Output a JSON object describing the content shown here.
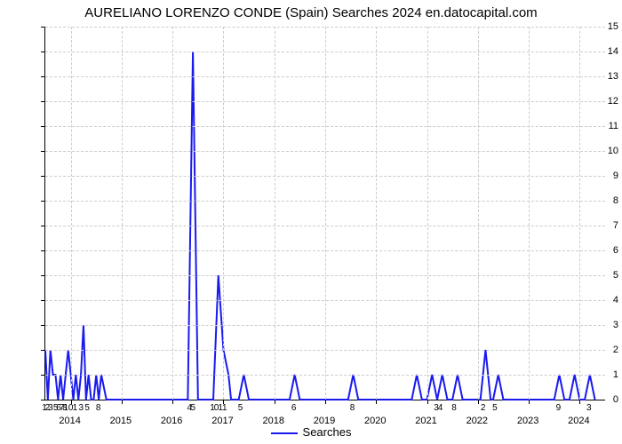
{
  "chart": {
    "type": "line",
    "title": "AURELIANO LORENZO CONDE (Spain) Searches 2024 en.datocapital.com",
    "title_fontsize": 15,
    "background_color": "#ffffff",
    "grid_color": "#cccccc",
    "line_color": "#1a1aef",
    "line_width": 2,
    "ylim": [
      0,
      15
    ],
    "ytick_step": 1,
    "xlim_years": [
      2013.5,
      2024.5
    ],
    "year_ticks": [
      2014,
      2015,
      2016,
      2017,
      2018,
      2019,
      2020,
      2021,
      2022,
      2023,
      2024
    ],
    "x_num_labels": [
      {
        "t": 2013.5,
        "text": "1"
      },
      {
        "t": 2013.56,
        "text": "2"
      },
      {
        "t": 2013.62,
        "text": "3"
      },
      {
        "t": 2013.72,
        "text": "5"
      },
      {
        "t": 2013.78,
        "text": "6"
      },
      {
        "t": 2013.84,
        "text": "7"
      },
      {
        "t": 2013.9,
        "text": "8"
      },
      {
        "t": 2013.97,
        "text": "10"
      },
      {
        "t": 2014.1,
        "text": "1"
      },
      {
        "t": 2014.22,
        "text": "3"
      },
      {
        "t": 2014.34,
        "text": "5"
      },
      {
        "t": 2014.56,
        "text": "8"
      },
      {
        "t": 2016.35,
        "text": "4"
      },
      {
        "t": 2016.42,
        "text": "5"
      },
      {
        "t": 2016.8,
        "text": "1"
      },
      {
        "t": 2016.88,
        "text": "0"
      },
      {
        "t": 2016.96,
        "text": "1"
      },
      {
        "t": 2017.04,
        "text": "1"
      },
      {
        "t": 2017.35,
        "text": "5"
      },
      {
        "t": 2018.4,
        "text": "6"
      },
      {
        "t": 2019.55,
        "text": "8"
      },
      {
        "t": 2021.2,
        "text": "3"
      },
      {
        "t": 2021.28,
        "text": "4"
      },
      {
        "t": 2021.55,
        "text": "8"
      },
      {
        "t": 2022.12,
        "text": "2"
      },
      {
        "t": 2022.35,
        "text": "5"
      },
      {
        "t": 2023.6,
        "text": "9"
      },
      {
        "t": 2024.2,
        "text": "3"
      }
    ],
    "data": [
      {
        "t": 2013.5,
        "v": 2
      },
      {
        "t": 2013.55,
        "v": 0
      },
      {
        "t": 2013.6,
        "v": 2
      },
      {
        "t": 2013.65,
        "v": 1
      },
      {
        "t": 2013.7,
        "v": 1
      },
      {
        "t": 2013.75,
        "v": 0
      },
      {
        "t": 2013.8,
        "v": 1
      },
      {
        "t": 2013.85,
        "v": 0
      },
      {
        "t": 2013.9,
        "v": 1
      },
      {
        "t": 2013.95,
        "v": 2
      },
      {
        "t": 2014.0,
        "v": 1
      },
      {
        "t": 2014.05,
        "v": 0
      },
      {
        "t": 2014.1,
        "v": 1
      },
      {
        "t": 2014.15,
        "v": 0
      },
      {
        "t": 2014.2,
        "v": 1
      },
      {
        "t": 2014.25,
        "v": 3
      },
      {
        "t": 2014.3,
        "v": 0
      },
      {
        "t": 2014.35,
        "v": 1
      },
      {
        "t": 2014.4,
        "v": 0
      },
      {
        "t": 2014.45,
        "v": 0
      },
      {
        "t": 2014.5,
        "v": 1
      },
      {
        "t": 2014.55,
        "v": 0
      },
      {
        "t": 2014.6,
        "v": 1
      },
      {
        "t": 2014.7,
        "v": 0
      },
      {
        "t": 2016.3,
        "v": 0
      },
      {
        "t": 2016.4,
        "v": 14
      },
      {
        "t": 2016.5,
        "v": 0
      },
      {
        "t": 2016.8,
        "v": 0
      },
      {
        "t": 2016.9,
        "v": 5
      },
      {
        "t": 2017.0,
        "v": 2
      },
      {
        "t": 2017.1,
        "v": 1
      },
      {
        "t": 2017.15,
        "v": 0
      },
      {
        "t": 2017.3,
        "v": 0
      },
      {
        "t": 2017.4,
        "v": 1
      },
      {
        "t": 2017.5,
        "v": 0
      },
      {
        "t": 2018.3,
        "v": 0
      },
      {
        "t": 2018.4,
        "v": 1
      },
      {
        "t": 2018.5,
        "v": 0
      },
      {
        "t": 2019.45,
        "v": 0
      },
      {
        "t": 2019.55,
        "v": 1
      },
      {
        "t": 2019.65,
        "v": 0
      },
      {
        "t": 2020.7,
        "v": 0
      },
      {
        "t": 2020.8,
        "v": 1
      },
      {
        "t": 2020.9,
        "v": 0
      },
      {
        "t": 2021.0,
        "v": 0
      },
      {
        "t": 2021.1,
        "v": 1
      },
      {
        "t": 2021.2,
        "v": 0
      },
      {
        "t": 2021.3,
        "v": 1
      },
      {
        "t": 2021.4,
        "v": 0
      },
      {
        "t": 2021.5,
        "v": 0
      },
      {
        "t": 2021.6,
        "v": 1
      },
      {
        "t": 2021.7,
        "v": 0
      },
      {
        "t": 2022.05,
        "v": 0
      },
      {
        "t": 2022.15,
        "v": 2
      },
      {
        "t": 2022.25,
        "v": 0
      },
      {
        "t": 2022.3,
        "v": 0
      },
      {
        "t": 2022.4,
        "v": 1
      },
      {
        "t": 2022.5,
        "v": 0
      },
      {
        "t": 2023.5,
        "v": 0
      },
      {
        "t": 2023.6,
        "v": 1
      },
      {
        "t": 2023.7,
        "v": 0
      },
      {
        "t": 2023.8,
        "v": 0
      },
      {
        "t": 2023.9,
        "v": 1
      },
      {
        "t": 2024.0,
        "v": 0
      },
      {
        "t": 2024.1,
        "v": 0
      },
      {
        "t": 2024.2,
        "v": 1
      },
      {
        "t": 2024.3,
        "v": 0
      }
    ],
    "legend_label": "Searches",
    "legend_fontsize": 13,
    "axis_fontsize": 11
  }
}
